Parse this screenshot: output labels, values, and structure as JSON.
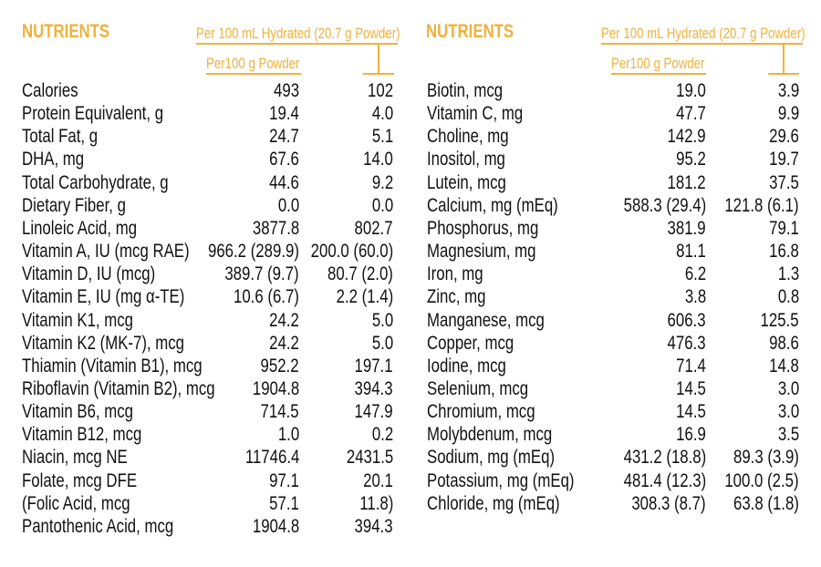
{
  "accent_color": "#f0b13a",
  "panels": [
    {
      "title": "NUTRIENTS",
      "hydrated_header": "Per 100 mL Hydrated (20.7 g Powder)",
      "powder_header": "Per100 g  Powder",
      "rows": [
        {
          "label": "Calories",
          "per_100g": "493",
          "per_100ml": "102"
        },
        {
          "label": "Protein Equivalent, g",
          "per_100g": "19.4",
          "per_100ml": "4.0"
        },
        {
          "label": "Total Fat, g",
          "per_100g": "24.7",
          "per_100ml": "5.1"
        },
        {
          "label": "DHA, mg",
          "per_100g": "67.6",
          "per_100ml": "14.0"
        },
        {
          "label": "Total Carbohydrate, g",
          "per_100g": "44.6",
          "per_100ml": "9.2"
        },
        {
          "label": " Dietary Fiber, g",
          "per_100g": "0.0",
          "per_100ml": "0.0"
        },
        {
          "label": "Linoleic Acid, mg",
          "per_100g": "3877.8",
          "per_100ml": "802.7"
        },
        {
          "label": "Vitamin A, IU (mcg RAE)",
          "per_100g": "966.2 (289.9)",
          "per_100ml": "200.0 (60.0)"
        },
        {
          "label": "Vitamin D, IU (mcg)",
          "per_100g": "389.7 (9.7)",
          "per_100ml": "80.7 (2.0)"
        },
        {
          "label": "Vitamin E, IU (mg α-TE)",
          "per_100g": "10.6 (6.7)",
          "per_100ml": "2.2 (1.4)"
        },
        {
          "label": "Vitamin K1, mcg",
          "per_100g": "24.2",
          "per_100ml": "5.0"
        },
        {
          "label": "Vitamin K2 (MK-7), mcg",
          "per_100g": "24.2",
          "per_100ml": "5.0"
        },
        {
          "label": "Thiamin (Vitamin B1), mcg",
          "per_100g": "952.2",
          "per_100ml": "197.1"
        },
        {
          "label": "Riboflavin (Vitamin B2), mcg",
          "per_100g": "1904.8",
          "per_100ml": "394.3"
        },
        {
          "label": "Vitamin B6, mcg",
          "per_100g": "714.5",
          "per_100ml": "147.9"
        },
        {
          "label": "Vitamin B12, mcg",
          "per_100g": "1.0",
          "per_100ml": "0.2"
        },
        {
          "label": "Niacin, mcg NE",
          "per_100g": "11746.4",
          "per_100ml": "2431.5"
        },
        {
          "label": "Folate, mcg DFE",
          "per_100g": "97.1",
          "per_100ml": "20.1"
        },
        {
          "label": " (Folic Acid, mcg",
          "per_100g": "57.1",
          "per_100ml": "11.8)"
        },
        {
          "label": "Pantothenic Acid, mcg",
          "per_100g": "1904.8",
          "per_100ml": "394.3"
        }
      ]
    },
    {
      "title": "NUTRIENTS",
      "hydrated_header": "Per 100 mL Hydrated (20.7 g Powder)",
      "powder_header": "Per100 g  Powder",
      "rows": [
        {
          "label": "Biotin, mcg",
          "per_100g": "19.0",
          "per_100ml": "3.9"
        },
        {
          "label": "Vitamin C, mg",
          "per_100g": "47.7",
          "per_100ml": "9.9"
        },
        {
          "label": "Choline, mg",
          "per_100g": "142.9",
          "per_100ml": "29.6"
        },
        {
          "label": "Inositol, mg",
          "per_100g": "95.2",
          "per_100ml": "19.7"
        },
        {
          "label": "Lutein, mcg",
          "per_100g": "181.2",
          "per_100ml": "37.5"
        },
        {
          "label": "Calcium, mg (mEq)",
          "per_100g": "588.3 (29.4)",
          "per_100ml": "121.8 (6.1)"
        },
        {
          "label": "Phosphorus, mg",
          "per_100g": "381.9",
          "per_100ml": "79.1"
        },
        {
          "label": "Magnesium, mg",
          "per_100g": "81.1",
          "per_100ml": "16.8"
        },
        {
          "label": "Iron, mg",
          "per_100g": "6.2",
          "per_100ml": "1.3"
        },
        {
          "label": "Zinc, mg",
          "per_100g": "3.8",
          "per_100ml": "0.8"
        },
        {
          "label": "Manganese, mcg",
          "per_100g": "606.3",
          "per_100ml": "125.5"
        },
        {
          "label": "Copper, mcg",
          "per_100g": "476.3",
          "per_100ml": "98.6"
        },
        {
          "label": "Iodine, mcg",
          "per_100g": "71.4",
          "per_100ml": "14.8"
        },
        {
          "label": "Selenium, mcg",
          "per_100g": "14.5",
          "per_100ml": "3.0"
        },
        {
          "label": "Chromium, mcg",
          "per_100g": "14.5",
          "per_100ml": "3.0"
        },
        {
          "label": "Molybdenum, mcg",
          "per_100g": "16.9",
          "per_100ml": "3.5"
        },
        {
          "label": "Sodium, mg (mEq)",
          "per_100g": "431.2 (18.8)",
          "per_100ml": "89.3 (3.9)"
        },
        {
          "label": "Potassium, mg (mEq)",
          "per_100g": "481.4 (12.3)",
          "per_100ml": "100.0 (2.5)"
        },
        {
          "label": "Chloride, mg (mEq)",
          "per_100g": "308.3 (8.7)",
          "per_100ml": "63.8 (1.8)"
        }
      ]
    }
  ]
}
